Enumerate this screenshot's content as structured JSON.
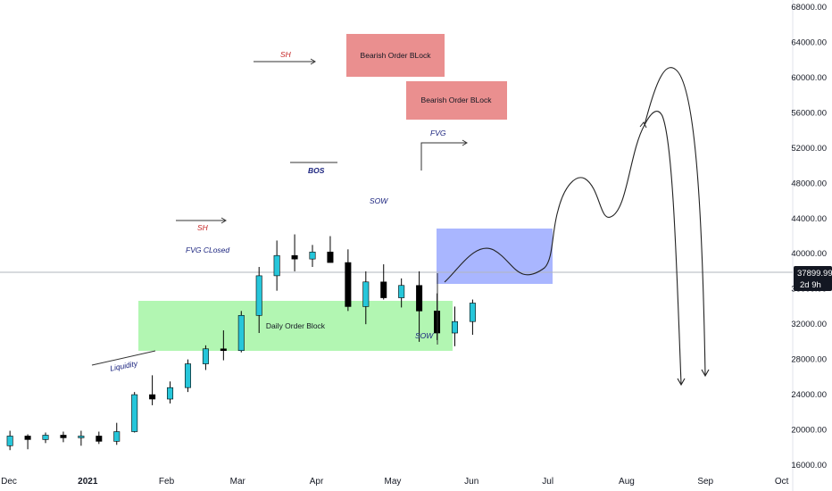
{
  "chart_data": {
    "type": "candlestick",
    "interval": "weekly",
    "y_axis": {
      "range": [
        16000,
        68000
      ],
      "ticks": [
        "68000.00",
        "64000.00",
        "60000.00",
        "56000.00",
        "52000.00",
        "48000.00",
        "44000.00",
        "40000.00",
        "36000.00",
        "32000.00",
        "28000.00",
        "24000.00",
        "20000.00",
        "16000.00"
      ]
    },
    "x_axis": {
      "ticks": [
        {
          "label": "Dec",
          "bold": false,
          "date": "2020-12-01"
        },
        {
          "label": "2021",
          "bold": true,
          "date": "2021-01-01"
        },
        {
          "label": "Feb",
          "bold": false,
          "date": "2021-02-01"
        },
        {
          "label": "Mar",
          "bold": false,
          "date": "2021-03-01"
        },
        {
          "label": "Apr",
          "bold": false,
          "date": "2021-04-01"
        },
        {
          "label": "May",
          "bold": false,
          "date": "2021-05-01"
        },
        {
          "label": "Jun",
          "bold": false,
          "date": "2021-06-01"
        },
        {
          "label": "Jul",
          "bold": false,
          "date": "2021-07-01"
        },
        {
          "label": "Aug",
          "bold": false,
          "date": "2021-08-01"
        },
        {
          "label": "Sep",
          "bold": false,
          "date": "2021-09-01"
        },
        {
          "label": "Oct",
          "bold": false,
          "date": "2021-10-01"
        }
      ]
    },
    "current_price": {
      "label": "37899.99",
      "value": 37900,
      "countdown": "2d 9h"
    },
    "candles": [
      {
        "date": "2020-11-30",
        "o": 18200,
        "h": 19900,
        "l": 17700,
        "c": 19300
      },
      {
        "date": "2020-12-07",
        "o": 19300,
        "h": 19500,
        "l": 17800,
        "c": 18900
      },
      {
        "date": "2020-12-14",
        "o": 18900,
        "h": 19700,
        "l": 18500,
        "c": 19400
      },
      {
        "date": "2020-12-21",
        "o": 19400,
        "h": 19800,
        "l": 18600,
        "c": 19100
      },
      {
        "date": "2020-12-28",
        "o": 19100,
        "h": 19900,
        "l": 18200,
        "c": 19300
      },
      {
        "date": "2021-01-04",
        "o": 19300,
        "h": 19800,
        "l": 18400,
        "c": 18700
      },
      {
        "date": "2021-01-11",
        "o": 18700,
        "h": 20800,
        "l": 18300,
        "c": 19800
      },
      {
        "date": "2021-01-18",
        "o": 19800,
        "h": 24300,
        "l": 19700,
        "c": 24000
      },
      {
        "date": "2021-01-25",
        "o": 24000,
        "h": 26200,
        "l": 22800,
        "c": 23500
      },
      {
        "date": "2021-02-01",
        "o": 23500,
        "h": 25500,
        "l": 23000,
        "c": 24800
      },
      {
        "date": "2021-02-08",
        "o": 24800,
        "h": 28000,
        "l": 24300,
        "c": 27500
      },
      {
        "date": "2021-02-15",
        "o": 27500,
        "h": 29600,
        "l": 26800,
        "c": 29200
      },
      {
        "date": "2021-02-22",
        "o": 29200,
        "h": 31300,
        "l": 27900,
        "c": 29000
      },
      {
        "date": "2021-03-01",
        "o": 29000,
        "h": 33500,
        "l": 28800,
        "c": 33000
      },
      {
        "date": "2021-03-08",
        "o": 33000,
        "h": 38500,
        "l": 31000,
        "c": 37500
      },
      {
        "date": "2021-03-15",
        "o": 37500,
        "h": 41500,
        "l": 35800,
        "c": 39800
      },
      {
        "date": "2021-03-22",
        "o": 39800,
        "h": 42200,
        "l": 38000,
        "c": 39400
      },
      {
        "date": "2021-03-29",
        "o": 39400,
        "h": 41000,
        "l": 38500,
        "c": 40200
      },
      {
        "date": "2021-04-05",
        "o": 40200,
        "h": 42000,
        "l": 39000,
        "c": 39000
      },
      {
        "date": "2021-04-12",
        "o": 39000,
        "h": 40500,
        "l": 33500,
        "c": 34000
      },
      {
        "date": "2021-04-19",
        "o": 34000,
        "h": 38000,
        "l": 32000,
        "c": 36800
      },
      {
        "date": "2021-04-26",
        "o": 36800,
        "h": 38800,
        "l": 34800,
        "c": 35000
      },
      {
        "date": "2021-05-03",
        "o": 35000,
        "h": 37200,
        "l": 33900,
        "c": 36400
      },
      {
        "date": "2021-05-10",
        "o": 36400,
        "h": 38000,
        "l": 30000,
        "c": 33500
      },
      {
        "date": "2021-05-17",
        "o": 33500,
        "h": 35500,
        "l": 30200,
        "c": 31000
      },
      {
        "date": "2021-05-24",
        "o": 31000,
        "h": 34000,
        "l": 29500,
        "c": 32300
      },
      {
        "date": "2021-05-31",
        "o": 32300,
        "h": 34800,
        "l": 30800,
        "c": 34400
      }
    ]
  },
  "annotations": {
    "bearish_ob_1": "Bearish Order BLock",
    "bearish_ob_2": "Bearish Order BLock",
    "daily_ob": "Daily Order Block",
    "sh_top": "SH",
    "sh_low": "SH",
    "fvg": "FVG",
    "fvg_closed": "FVG CLosed",
    "bos": "BOS",
    "sow_1": "SOW",
    "sow_2": "SOW",
    "liquidity": "Liquidity"
  },
  "colors": {
    "bull": "#26c6da",
    "bear": "#000000",
    "bearish_zone": "#e57373",
    "daily_zone": "#a5f5a5",
    "projection_zone": "#8c9eff",
    "sh_text": "#c62828",
    "anno_text": "#1a237e"
  }
}
